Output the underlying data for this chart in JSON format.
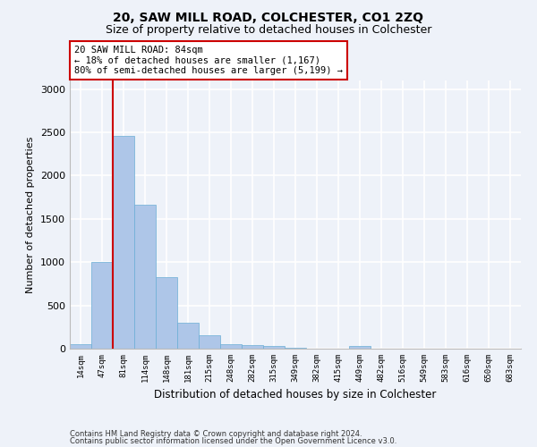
{
  "title1": "20, SAW MILL ROAD, COLCHESTER, CO1 2ZQ",
  "title2": "Size of property relative to detached houses in Colchester",
  "xlabel": "Distribution of detached houses by size in Colchester",
  "ylabel": "Number of detached properties",
  "footer1": "Contains HM Land Registry data © Crown copyright and database right 2024.",
  "footer2": "Contains public sector information licensed under the Open Government Licence v3.0.",
  "annotation_title": "20 SAW MILL ROAD: 84sqm",
  "annotation_line1": "← 18% of detached houses are smaller (1,167)",
  "annotation_line2": "80% of semi-detached houses are larger (5,199) →",
  "bar_labels": [
    "14sqm",
    "47sqm",
    "81sqm",
    "114sqm",
    "148sqm",
    "181sqm",
    "215sqm",
    "248sqm",
    "282sqm",
    "315sqm",
    "349sqm",
    "382sqm",
    "415sqm",
    "449sqm",
    "482sqm",
    "516sqm",
    "549sqm",
    "583sqm",
    "616sqm",
    "650sqm",
    "683sqm"
  ],
  "bar_values": [
    55,
    1000,
    2460,
    1660,
    830,
    300,
    150,
    55,
    40,
    30,
    15,
    0,
    0,
    30,
    0,
    0,
    0,
    0,
    0,
    0,
    0
  ],
  "bar_color": "#aec6e8",
  "bar_edge_color": "#6aaed6",
  "vline_color": "#cc0000",
  "ylim": [
    0,
    3100
  ],
  "yticks": [
    0,
    500,
    1000,
    1500,
    2000,
    2500,
    3000
  ],
  "bg_color": "#eef2f9",
  "grid_color": "#ffffff",
  "annotation_box_color": "#ffffff",
  "annotation_box_edge": "#cc0000"
}
